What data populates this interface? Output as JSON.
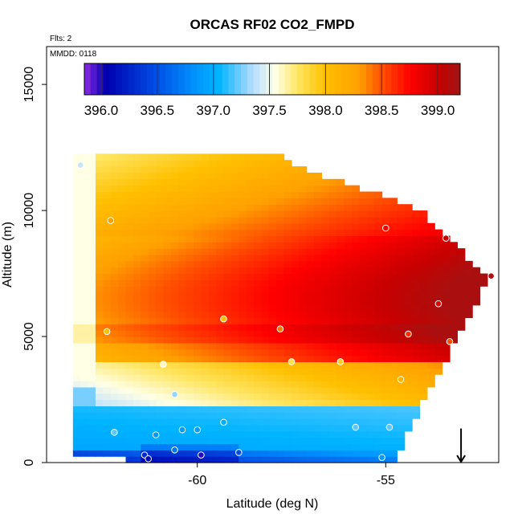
{
  "chart_data": {
    "type": "heatmap",
    "title": "ORCAS RF02 CO2_FMPD",
    "subtitle_flights": "Flts: 2",
    "subtitle_date": "MMDD: 0118",
    "xlabel": "Latitude (deg N)",
    "ylabel": "Altitude (m)",
    "xlim": [
      -64.0,
      -52.0
    ],
    "ylim": [
      0,
      16500
    ],
    "x_ticks": [
      -60,
      -55
    ],
    "x_tick_labels": [
      "-60",
      "-55"
    ],
    "y_ticks": [
      0,
      5000,
      10000,
      15000
    ],
    "y_tick_labels": [
      "0",
      "5000",
      "10000",
      "15000"
    ],
    "colorbar": {
      "min": 395.85,
      "max": 399.2,
      "ticks": [
        396.0,
        396.5,
        397.0,
        397.5,
        398.0,
        398.5,
        399.0
      ],
      "tick_labels": [
        "396.0",
        "396.5",
        "397.0",
        "397.5",
        "398.0",
        "398.5",
        "399.0"
      ],
      "stops": [
        {
          "value": 395.85,
          "color": "#8b2be2"
        },
        {
          "value": 396.05,
          "color": "#0000b0"
        },
        {
          "value": 396.5,
          "color": "#0050e6"
        },
        {
          "value": 396.85,
          "color": "#0096ff"
        },
        {
          "value": 397.05,
          "color": "#00b4ff"
        },
        {
          "value": 397.35,
          "color": "#b4dcff"
        },
        {
          "value": 397.55,
          "color": "#ffffe6"
        },
        {
          "value": 397.75,
          "color": "#ffe664"
        },
        {
          "value": 398.0,
          "color": "#ffc000"
        },
        {
          "value": 398.3,
          "color": "#ffa000"
        },
        {
          "value": 398.5,
          "color": "#ff5000"
        },
        {
          "value": 398.75,
          "color": "#ff0000"
        },
        {
          "value": 399.0,
          "color": "#c80000"
        },
        {
          "value": 399.2,
          "color": "#a01414"
        }
      ]
    },
    "field_extent": {
      "lat_min": -63.3,
      "ceiling_profile": [
        {
          "lat": -63.3,
          "alt": 12200
        },
        {
          "lat": -58.0,
          "alt": 12200
        },
        {
          "lat": -57.0,
          "alt": 11400
        },
        {
          "lat": -55.5,
          "alt": 10700
        },
        {
          "lat": -54.0,
          "alt": 9800
        },
        {
          "lat": -52.4,
          "alt": 7400
        }
      ],
      "floor_profile": [
        {
          "lat": -63.3,
          "alt": 300
        },
        {
          "lat": -54.8,
          "alt": 0
        },
        {
          "lat": -54.0,
          "alt": 2500
        },
        {
          "lat": -52.4,
          "alt": 7000
        }
      ]
    },
    "observations": [
      {
        "lat": -63.1,
        "alt": 11800,
        "value": 397.4
      },
      {
        "lat": -62.3,
        "alt": 9600,
        "value": 398.3
      },
      {
        "lat": -62.4,
        "alt": 5200,
        "value": 398.0
      },
      {
        "lat": -59.3,
        "alt": 5700,
        "value": 398.0
      },
      {
        "lat": -57.8,
        "alt": 5300,
        "value": 398.4
      },
      {
        "lat": -57.5,
        "alt": 4000,
        "value": 397.8
      },
      {
        "lat": -56.2,
        "alt": 4000,
        "value": 397.9
      },
      {
        "lat": -55.0,
        "alt": 9300,
        "value": 398.8
      },
      {
        "lat": -53.4,
        "alt": 8900,
        "value": 399.0
      },
      {
        "lat": -52.2,
        "alt": 7400,
        "value": 399.1
      },
      {
        "lat": -53.6,
        "alt": 6300,
        "value": 398.9
      },
      {
        "lat": -54.4,
        "alt": 5100,
        "value": 398.6
      },
      {
        "lat": -53.3,
        "alt": 4800,
        "value": 398.5
      },
      {
        "lat": -54.6,
        "alt": 3300,
        "value": 398.1
      },
      {
        "lat": -60.9,
        "alt": 3900,
        "value": 397.6
      },
      {
        "lat": -60.6,
        "alt": 2700,
        "value": 397.3
      },
      {
        "lat": -59.3,
        "alt": 1600,
        "value": 397.0
      },
      {
        "lat": -60.0,
        "alt": 1300,
        "value": 396.9
      },
      {
        "lat": -60.4,
        "alt": 1300,
        "value": 396.9
      },
      {
        "lat": -61.1,
        "alt": 1100,
        "value": 396.9
      },
      {
        "lat": -62.2,
        "alt": 1200,
        "value": 397.2
      },
      {
        "lat": -60.6,
        "alt": 500,
        "value": 396.7
      },
      {
        "lat": -59.9,
        "alt": 300,
        "value": 396.0
      },
      {
        "lat": -58.9,
        "alt": 400,
        "value": 396.5
      },
      {
        "lat": -61.4,
        "alt": 300,
        "value": 396.3
      },
      {
        "lat": -61.3,
        "alt": 150,
        "value": 396.1
      },
      {
        "lat": -55.8,
        "alt": 1400,
        "value": 397.2
      },
      {
        "lat": -54.9,
        "alt": 1400,
        "value": 397.2
      },
      {
        "lat": -55.1,
        "alt": 200,
        "value": 396.9
      }
    ],
    "arrow_marker": {
      "lat": -53.0,
      "alt_top": 650,
      "alt_bottom": 0
    }
  }
}
